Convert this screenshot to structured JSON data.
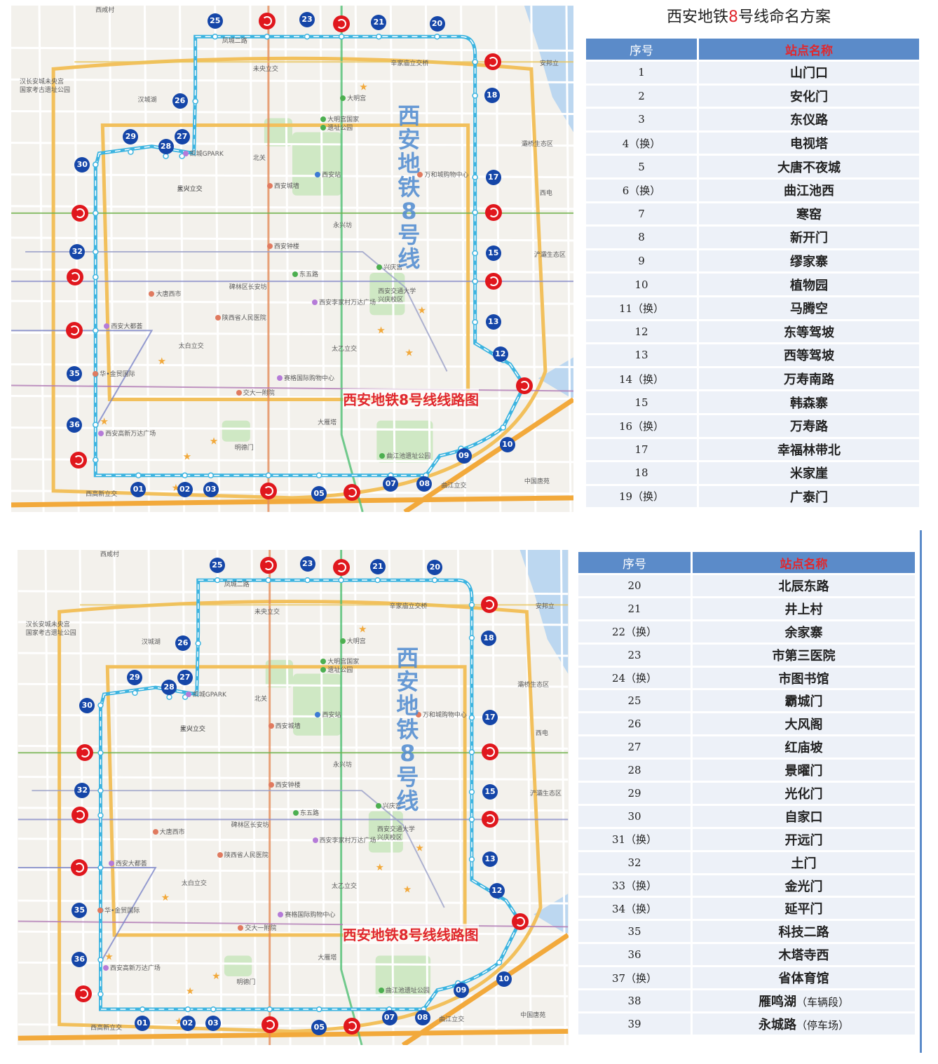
{
  "title": {
    "pre": "西安地铁",
    "num": "8",
    "post": "号线命名方案"
  },
  "map": {
    "vertical_title": [
      "西",
      "安",
      "地",
      "铁",
      "8",
      "号",
      "线"
    ],
    "route_title": "西安地铁8号线线路图",
    "labels": [
      "西咸村",
      "汉长安城未央宫",
      "国家考古遗址公园",
      "凤城二路",
      "未央立交",
      "辛家庙立交桥",
      "安邦立",
      "汉城湖",
      "大明宫",
      "大明宫国家",
      "遗址公园",
      "凯城GPARK",
      "大兴立交",
      "北关",
      "西安站",
      "万和城购物中心",
      "星火立交",
      "西安城墙",
      "西安钟楼",
      "永兴坊",
      "碑林区长安坊",
      "东五路",
      "兴庆宫",
      "西安交通大学",
      "兴庆校区",
      "大唐西市",
      "西安大都荟",
      "陕西省人民医院",
      "西安李家村万达广场",
      "太白立交",
      "赛格国际购物中心",
      "交大一附院",
      "大雁塔",
      "曲江池遗址公园",
      "华•金贸国际",
      "西安高新万达广场",
      "太乙立交",
      "西高新立交",
      "明德门",
      "中国唐苑",
      "曲江立交",
      "灞桥生态区",
      "浐灞生态区",
      "西电"
    ],
    "stations_top": [
      "25",
      "23",
      "21",
      "20",
      "18",
      "17",
      "15",
      "13",
      "12",
      "10",
      "09",
      "08",
      "07",
      "05",
      "03",
      "02",
      "01",
      "36",
      "35",
      "32",
      "30",
      "29",
      "28",
      "27",
      "26"
    ]
  },
  "table1": {
    "headers": [
      "序号",
      "站点名称"
    ],
    "rows": [
      [
        "1",
        "山门口",
        ""
      ],
      [
        "2",
        "安化门",
        ""
      ],
      [
        "3",
        "东仪路",
        ""
      ],
      [
        "4（换）",
        "电视塔",
        ""
      ],
      [
        "5",
        "大唐不夜城",
        ""
      ],
      [
        "6（换）",
        "曲江池西",
        ""
      ],
      [
        "7",
        "寒窑",
        ""
      ],
      [
        "8",
        "新开门",
        ""
      ],
      [
        "9",
        "缪家寨",
        ""
      ],
      [
        "10",
        "植物园",
        ""
      ],
      [
        "11（换）",
        "马腾空",
        ""
      ],
      [
        "12",
        "东等驾坡",
        ""
      ],
      [
        "13",
        "西等驾坡",
        ""
      ],
      [
        "14（换）",
        "万寿南路",
        ""
      ],
      [
        "15",
        "韩森寨",
        ""
      ],
      [
        "16（换）",
        "万寿路",
        ""
      ],
      [
        "17",
        "幸福林带北",
        ""
      ],
      [
        "18",
        "米家崖",
        ""
      ],
      [
        "19（换）",
        "广泰门",
        ""
      ]
    ]
  },
  "table2": {
    "headers": [
      "序号",
      "站点名称"
    ],
    "rows": [
      [
        "20",
        "北辰东路",
        ""
      ],
      [
        "21",
        "井上村",
        ""
      ],
      [
        "22（换）",
        "余家寨",
        ""
      ],
      [
        "23",
        "市第三医院",
        ""
      ],
      [
        "24（换）",
        "市图书馆",
        ""
      ],
      [
        "25",
        "霸城门",
        ""
      ],
      [
        "26",
        "大风阁",
        ""
      ],
      [
        "27",
        "红庙坡",
        ""
      ],
      [
        "28",
        "景曜门",
        ""
      ],
      [
        "29",
        "光化门",
        ""
      ],
      [
        "30",
        "自家口",
        ""
      ],
      [
        "31（换）",
        "开远门",
        ""
      ],
      [
        "32",
        "土门",
        ""
      ],
      [
        "33（换）",
        "金光门",
        ""
      ],
      [
        "34（换）",
        "延平门",
        ""
      ],
      [
        "35",
        "科技二路",
        ""
      ],
      [
        "36",
        "木塔寺西",
        ""
      ],
      [
        "37（换）",
        "省体育馆",
        ""
      ],
      [
        "38",
        "雁鸣湖",
        "（车辆段）"
      ],
      [
        "39",
        "永城路",
        "（停车场）"
      ]
    ]
  },
  "colors": {
    "route": "#3cb4e0",
    "station": "#1546a8",
    "transfer": "#e0171d",
    "header": "#5b8bc9"
  }
}
